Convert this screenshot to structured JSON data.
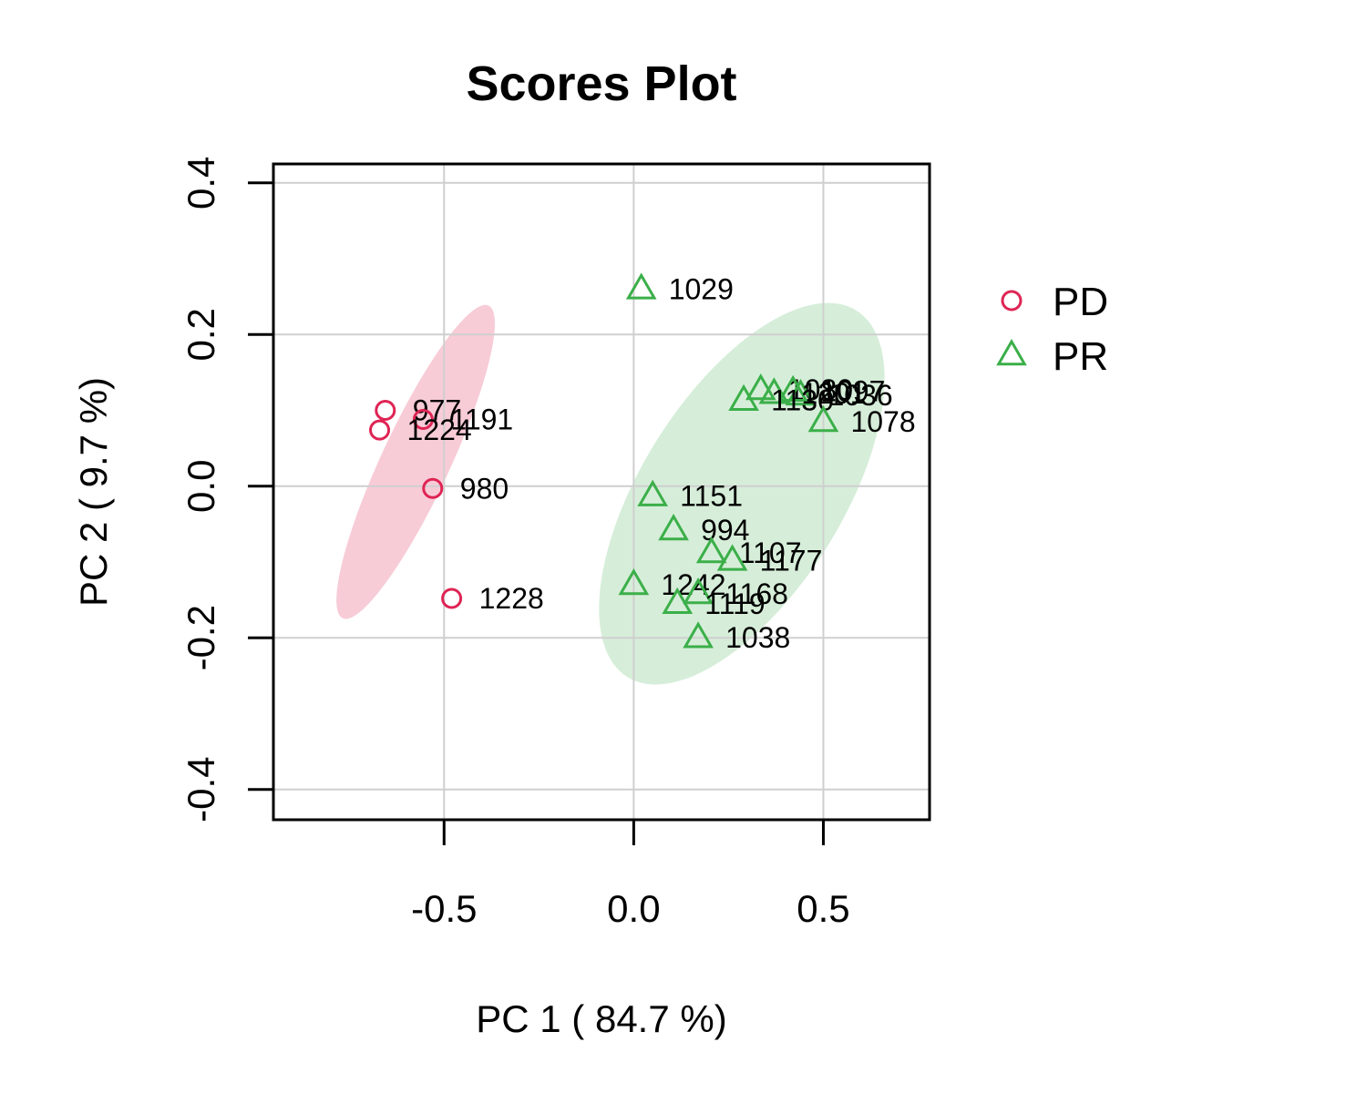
{
  "chart_data": {
    "type": "scatter",
    "title": "Scores Plot",
    "xlabel": "PC 1 ( 84.7 %)",
    "ylabel": "PC 2 ( 9.7 %)",
    "xlim": [
      -0.95,
      0.78
    ],
    "ylim": [
      -0.44,
      0.425
    ],
    "xticks": [
      -0.5,
      0.0,
      0.5
    ],
    "xtick_labels": [
      "-0.5",
      "0.0",
      "0.5"
    ],
    "yticks": [
      -0.4,
      -0.2,
      0.0,
      0.2,
      0.4
    ],
    "ytick_labels": [
      "-0.4",
      "-0.2",
      "0.0",
      "0.2",
      "0.4"
    ],
    "grid": true,
    "legend_position": "right",
    "series": [
      {
        "name": "PD",
        "marker": "circle",
        "color": "#DF2454",
        "ellipse_fill": "#F7CCD7",
        "ellipse": {
          "cx": -0.575,
          "cy": 0.032,
          "rx": 0.455,
          "ry": 0.09,
          "angle_deg": -65
        },
        "points": [
          {
            "label": "977",
            "x": -0.655,
            "y": 0.1
          },
          {
            "label": "1191",
            "x": -0.555,
            "y": 0.088
          },
          {
            "label": "1224",
            "x": -0.67,
            "y": 0.074
          },
          {
            "label": "980",
            "x": -0.53,
            "y": -0.003
          },
          {
            "label": "1228",
            "x": -0.48,
            "y": -0.148
          }
        ]
      },
      {
        "name": "PR",
        "marker": "triangle",
        "color": "#3BAF49",
        "ellipse_fill": "#D6EED9",
        "ellipse": {
          "cx": 0.285,
          "cy": -0.01,
          "rx": 0.57,
          "ry": 0.265,
          "angle_deg": -58
        },
        "points": [
          {
            "label": "1029",
            "x": 0.02,
            "y": 0.26
          },
          {
            "label": "1080",
            "x": 0.335,
            "y": 0.127
          },
          {
            "label": "1097",
            "x": 0.42,
            "y": 0.125
          },
          {
            "label": "1036",
            "x": 0.44,
            "y": 0.12
          },
          {
            "label": "1201",
            "x": 0.37,
            "y": 0.122
          },
          {
            "label": "1130",
            "x": 0.29,
            "y": 0.113
          },
          {
            "label": "1078",
            "x": 0.5,
            "y": 0.085
          },
          {
            "label": "1151",
            "x": 0.05,
            "y": -0.013
          },
          {
            "label": "994",
            "x": 0.105,
            "y": -0.058
          },
          {
            "label": "1107",
            "x": 0.205,
            "y": -0.088
          },
          {
            "label": "1177",
            "x": 0.26,
            "y": -0.098
          },
          {
            "label": "1242",
            "x": 0.0,
            "y": -0.13
          },
          {
            "label": "1168",
            "x": 0.17,
            "y": -0.142
          },
          {
            "label": "1119",
            "x": 0.115,
            "y": -0.155
          },
          {
            "label": "1038",
            "x": 0.17,
            "y": -0.2
          }
        ]
      }
    ]
  }
}
